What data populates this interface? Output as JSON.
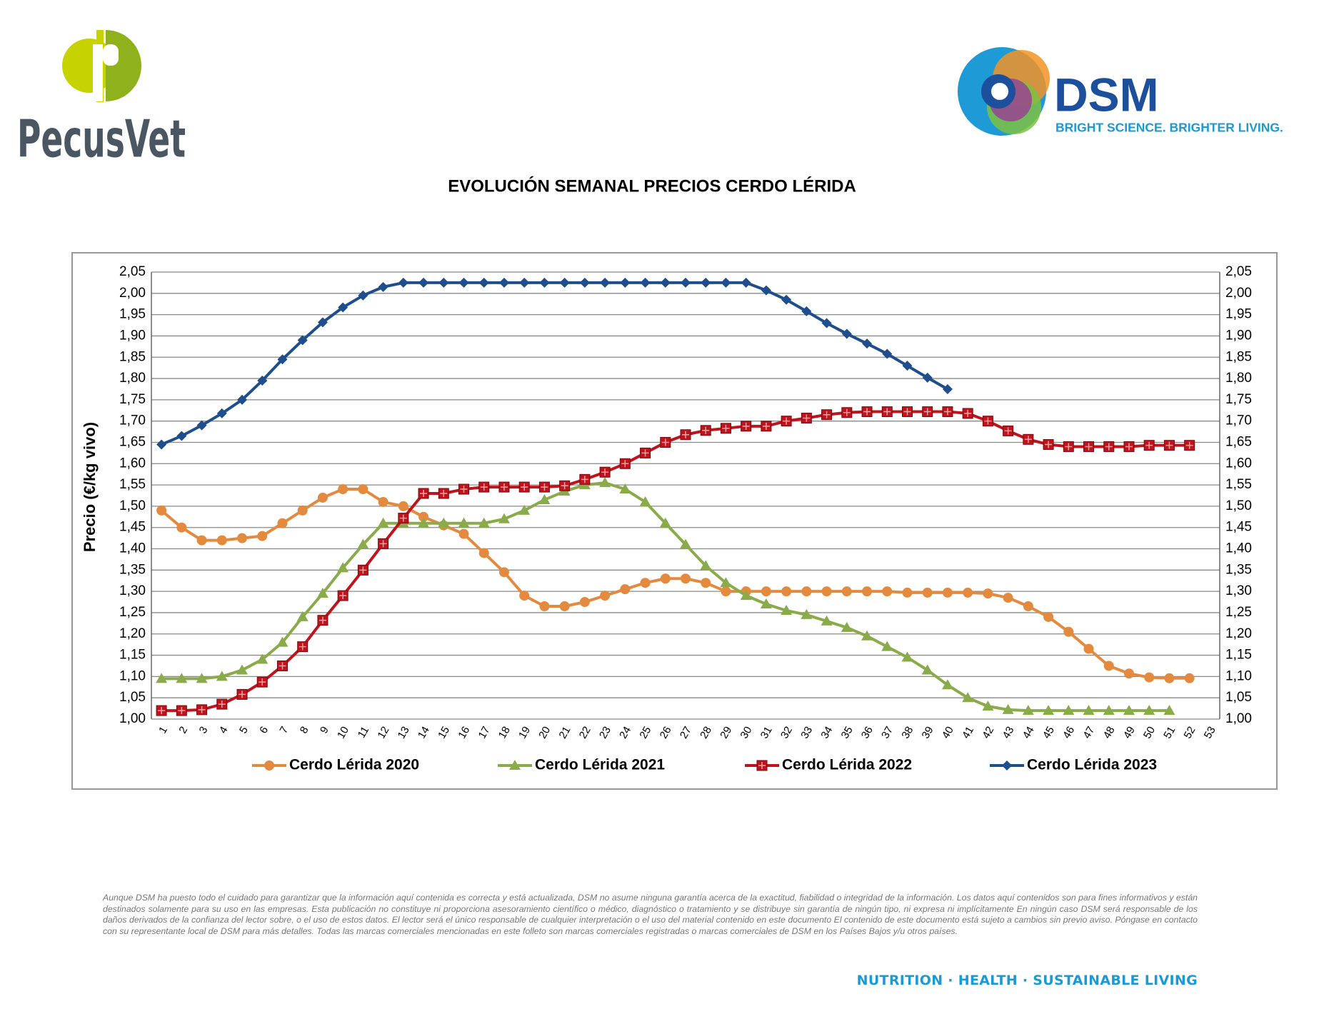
{
  "header": {
    "brand": "PecusVet",
    "partner": "DSM",
    "tagline": "BRIGHT SCIENCE. BRIGHTER LIVING."
  },
  "chart_data": {
    "type": "line",
    "title": "EVOLUCIÓN SEMANAL PRECIOS CERDO LÉRIDA",
    "y_label": "Precio (€/kg vivo)",
    "categories": [
      "1",
      "2",
      "3",
      "4",
      "5",
      "6",
      "7",
      "8",
      "9",
      "10",
      "11",
      "12",
      "13",
      "14",
      "15",
      "16",
      "17",
      "18",
      "19",
      "20",
      "21",
      "22",
      "23",
      "24",
      "25",
      "26",
      "27",
      "28",
      "29",
      "30",
      "31",
      "32",
      "33",
      "34",
      "35",
      "36",
      "37",
      "38",
      "39",
      "40",
      "41",
      "42",
      "43",
      "44",
      "45",
      "46",
      "47",
      "48",
      "49",
      "50",
      "51",
      "52",
      "53"
    ],
    "ylim": [
      1.0,
      2.05
    ],
    "yticks": [
      {
        "value": 1.0,
        "label": "1,00"
      },
      {
        "value": 1.05,
        "label": "1,05"
      },
      {
        "value": 1.1,
        "label": "1,10"
      },
      {
        "value": 1.15,
        "label": "1,15"
      },
      {
        "value": 1.2,
        "label": "1,20"
      },
      {
        "value": 1.25,
        "label": "1,25"
      },
      {
        "value": 1.3,
        "label": "1,30"
      },
      {
        "value": 1.35,
        "label": "1,35"
      },
      {
        "value": 1.4,
        "label": "1,40"
      },
      {
        "value": 1.45,
        "label": "1,45"
      },
      {
        "value": 1.5,
        "label": "1,50"
      },
      {
        "value": 1.55,
        "label": "1,55"
      },
      {
        "value": 1.6,
        "label": "1,60"
      },
      {
        "value": 1.65,
        "label": "1,65"
      },
      {
        "value": 1.7,
        "label": "1,70"
      },
      {
        "value": 1.75,
        "label": "1,75"
      },
      {
        "value": 1.8,
        "label": "1,80"
      },
      {
        "value": 1.85,
        "label": "1,85"
      },
      {
        "value": 1.9,
        "label": "1,90"
      },
      {
        "value": 1.95,
        "label": "1,95"
      },
      {
        "value": 2.0,
        "label": "2,00"
      },
      {
        "value": 2.05,
        "label": "2,05"
      }
    ],
    "grid": true,
    "legend": "bottom",
    "series": [
      {
        "name": "Cerdo Lérida 2020",
        "color": "#e38a3f",
        "marker": "circle",
        "values": [
          1.49,
          1.45,
          1.42,
          1.42,
          1.425,
          1.43,
          1.46,
          1.49,
          1.52,
          1.54,
          1.54,
          1.51,
          1.5,
          1.475,
          1.455,
          1.435,
          1.39,
          1.345,
          1.29,
          1.265,
          1.265,
          1.275,
          1.29,
          1.305,
          1.32,
          1.33,
          1.33,
          1.32,
          1.3,
          1.3,
          1.3,
          1.3,
          1.3,
          1.3,
          1.3,
          1.3,
          1.3,
          1.297,
          1.297,
          1.297,
          1.297,
          1.295,
          1.285,
          1.265,
          1.24,
          1.205,
          1.165,
          1.125,
          1.107,
          1.098,
          1.096,
          1.096,
          null
        ]
      },
      {
        "name": "Cerdo Lérida 2021",
        "color": "#8aab4a",
        "marker": "triangle",
        "values": [
          1.095,
          1.095,
          1.095,
          1.1,
          1.115,
          1.14,
          1.18,
          1.24,
          1.295,
          1.355,
          1.41,
          1.46,
          1.46,
          1.46,
          1.46,
          1.46,
          1.46,
          1.47,
          1.49,
          1.515,
          1.535,
          1.55,
          1.555,
          1.54,
          1.51,
          1.46,
          1.41,
          1.36,
          1.32,
          1.29,
          1.27,
          1.255,
          1.245,
          1.23,
          1.215,
          1.195,
          1.17,
          1.145,
          1.115,
          1.08,
          1.05,
          1.03,
          1.022,
          1.02,
          1.02,
          1.02,
          1.02,
          1.02,
          1.02,
          1.02,
          1.02,
          null,
          null
        ]
      },
      {
        "name": "Cerdo Lérida 2022",
        "color": "#c0141d",
        "marker": "square",
        "values": [
          1.02,
          1.02,
          1.022,
          1.035,
          1.058,
          1.087,
          1.125,
          1.17,
          1.232,
          1.29,
          1.35,
          1.412,
          1.472,
          1.53,
          1.53,
          1.54,
          1.545,
          1.545,
          1.545,
          1.545,
          1.548,
          1.563,
          1.58,
          1.6,
          1.625,
          1.65,
          1.668,
          1.678,
          1.683,
          1.688,
          1.688,
          1.7,
          1.707,
          1.715,
          1.72,
          1.722,
          1.722,
          1.722,
          1.722,
          1.722,
          1.718,
          1.7,
          1.677,
          1.657,
          1.645,
          1.64,
          1.64,
          1.64,
          1.64,
          1.643,
          1.643,
          1.643,
          null
        ]
      },
      {
        "name": "Cerdo Lérida 2023",
        "color": "#1f4e8c",
        "marker": "diamond",
        "values": [
          1.645,
          1.665,
          1.69,
          1.718,
          1.75,
          1.795,
          1.845,
          1.89,
          1.932,
          1.967,
          1.995,
          2.015,
          2.025,
          2.025,
          2.025,
          2.025,
          2.025,
          2.025,
          2.025,
          2.025,
          2.025,
          2.025,
          2.025,
          2.025,
          2.025,
          2.025,
          2.025,
          2.025,
          2.025,
          2.025,
          2.007,
          1.985,
          1.958,
          1.93,
          1.905,
          1.882,
          1.858,
          1.83,
          1.802,
          1.775,
          null,
          null,
          null,
          null,
          null,
          null,
          null,
          null,
          null,
          null,
          null,
          null,
          null
        ]
      }
    ]
  },
  "footer": {
    "disclaimer": "Aunque DSM ha puesto todo el cuidado para garantizar que la información aquí contenida es correcta y está actualizada, DSM no asume ninguna garantía acerca de la exactitud, fiabilidad o integridad de la información. Los datos aquí contenidos son para fines informativos y están destinados solamente para su uso en las empresas. Esta publicación no constituye ni proporciona asesoramiento científico o médico, diagnóstico o tratamiento y se distribuye sin garantía de ningún tipo, ni expresa ni implícitamente En ningún caso DSM será responsable de los daños derivados de la confianza del lector sobre, o el uso de estos datos. El lector será el único responsable de cualquier interpretación o el uso del material contenido en este documento El contenido de este documento está sujeto a cambios sin previo aviso. Póngase en contacto con su representante local de DSM para más detalles. Todas las marcas comerciales mencionadas en este folleto son marcas comerciales registradas o marcas comerciales de DSM en los Países Bajos y/u otros países.",
    "slogan": "NUTRITION · HEALTH · SUSTAINABLE LIVING"
  }
}
